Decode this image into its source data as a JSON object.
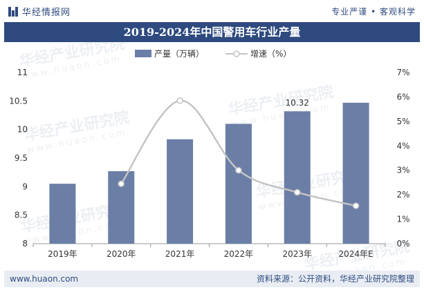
{
  "header": {
    "brand": "华经情报网",
    "slogan": "专业严谨 • 客观科学"
  },
  "footer": {
    "website": "www.huaon.com",
    "source": "资料来源：公开资料，华经产业研究院整理"
  },
  "watermark": {
    "text": "华经产业研究院",
    "url": "www.huaon.com"
  },
  "colors": {
    "brand": "#2e4a7f",
    "bar": "#6b7ea6",
    "line": "#c4c4c4"
  },
  "chart_data": {
    "type": "bar",
    "title": "2019-2024年中国警用车行业产量",
    "categories": [
      "2019年",
      "2020年",
      "2021年",
      "2022年",
      "2023年",
      "2024年E"
    ],
    "series": [
      {
        "name": "产量（万辆）",
        "type": "bar",
        "axis": "left",
        "values": [
          9.05,
          9.27,
          9.83,
          10.1,
          10.32,
          10.47
        ]
      },
      {
        "name": "增速（%）",
        "type": "line",
        "axis": "right",
        "values": [
          null,
          2.45,
          5.85,
          3.0,
          2.1,
          1.55
        ]
      }
    ],
    "data_labels": [
      {
        "category": "2023年",
        "text": "10.32"
      }
    ],
    "left_axis": {
      "ylim": [
        8,
        11
      ],
      "ticks": [
        "8",
        "8.5",
        "9",
        "9.5",
        "10",
        "10.5",
        "11"
      ]
    },
    "right_axis": {
      "ylim": [
        0,
        7
      ],
      "ticks": [
        "0%",
        "1%",
        "2%",
        "3%",
        "4%",
        "5%",
        "6%",
        "7%"
      ]
    },
    "legend_position": "top-center",
    "grid": false
  }
}
